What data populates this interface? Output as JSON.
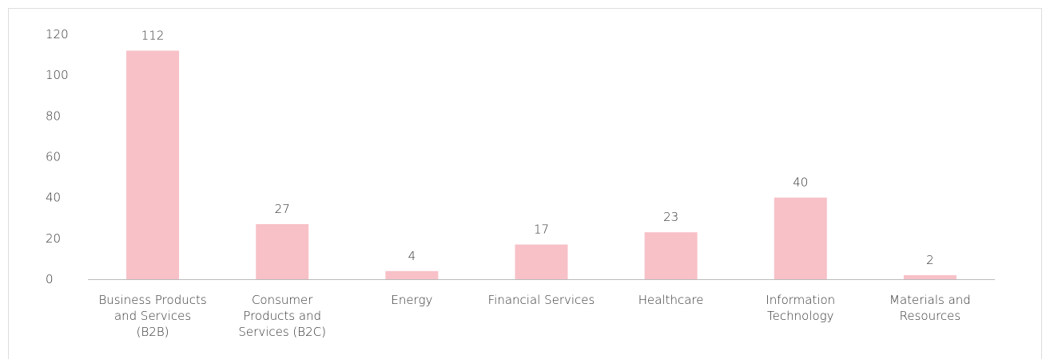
{
  "chart_data": {
    "type": "bar",
    "categories": [
      "Business Products and Services (B2B)",
      "Consumer Products and Services (B2C)",
      "Energy",
      "Financial Services",
      "Healthcare",
      "Information Technology",
      "Materials and Resources"
    ],
    "values": [
      112,
      27,
      4,
      17,
      23,
      40,
      2
    ],
    "color": "#f7c1c7",
    "ylim": [
      0,
      120
    ],
    "yticks": [
      0,
      20,
      40,
      60,
      80,
      100,
      120
    ],
    "grid": false
  }
}
